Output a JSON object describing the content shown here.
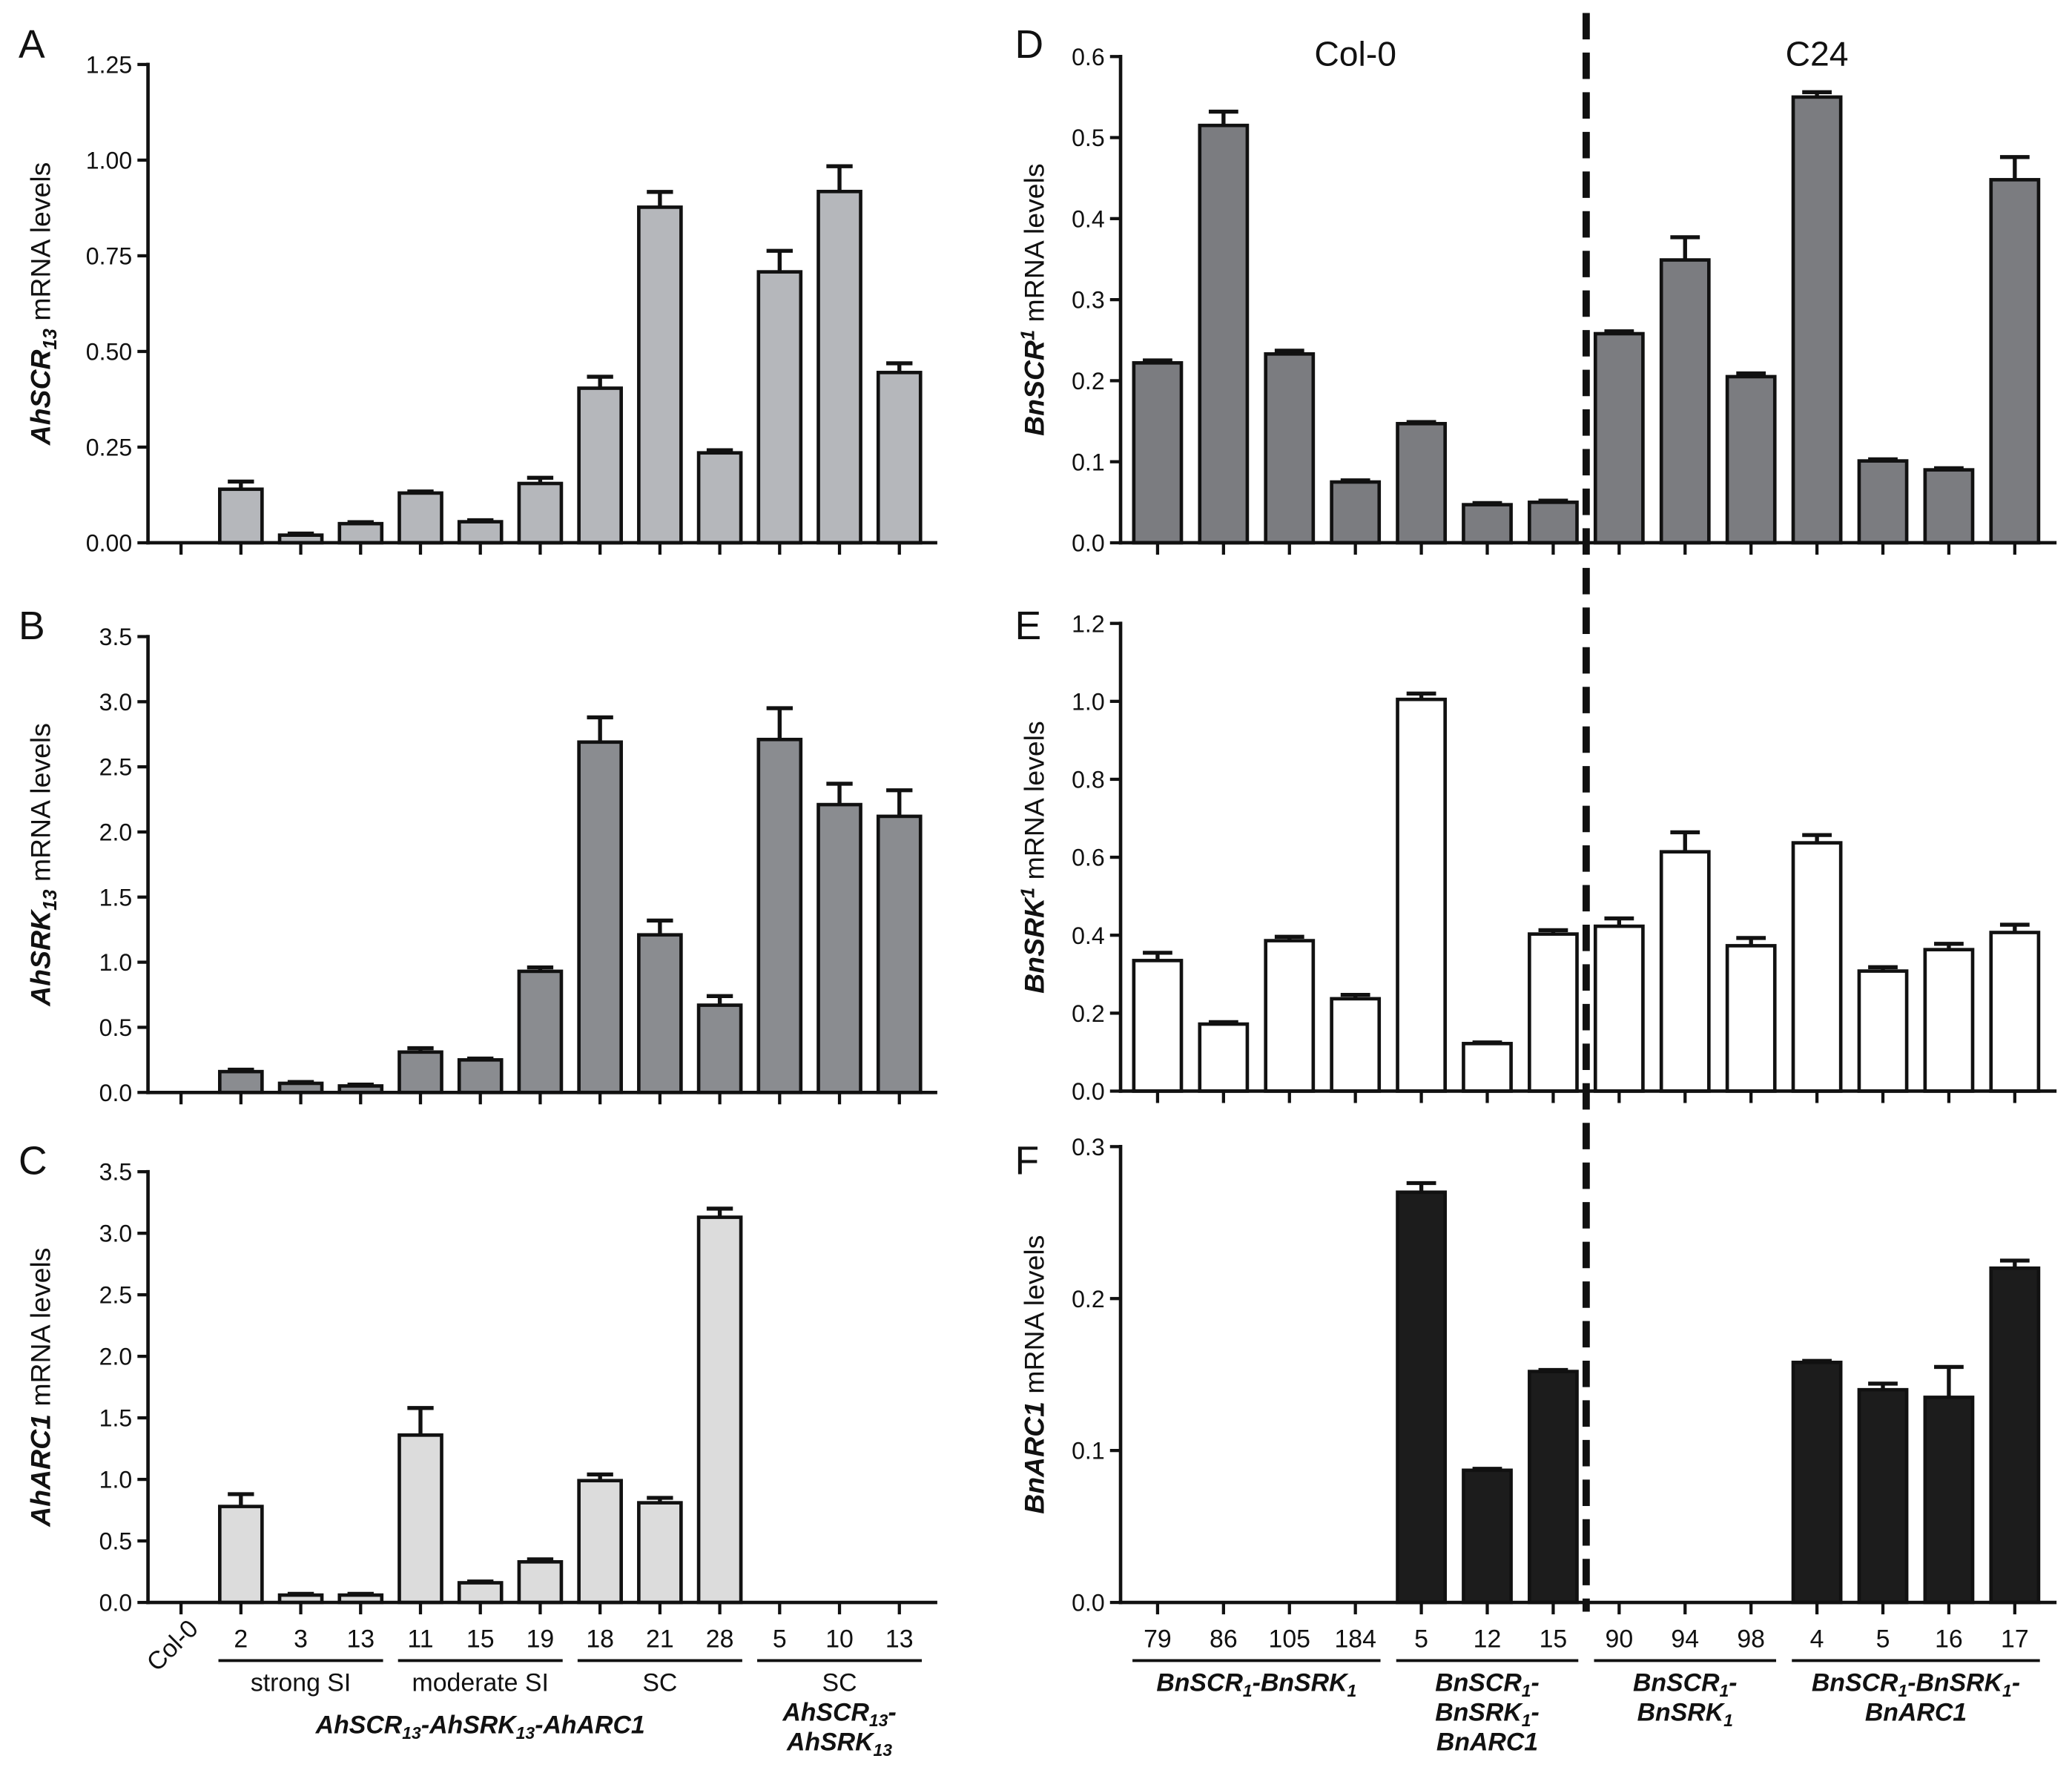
{
  "chart_data": {
    "type": "bar",
    "left": {
      "categories": [
        "Col-0",
        "2",
        "3",
        "13",
        "11",
        "15",
        "19",
        "18",
        "21",
        "28",
        "5",
        "10",
        "13"
      ],
      "groups": [
        {
          "from": 1,
          "to": 3,
          "underline": true,
          "lines": [
            {
              "italic": false,
              "segs": [
                {
                  "t": "strong SI"
                }
              ]
            }
          ]
        },
        {
          "from": 4,
          "to": 6,
          "underline": true,
          "lines": [
            {
              "italic": false,
              "segs": [
                {
                  "t": "moderate SI"
                }
              ]
            }
          ]
        },
        {
          "from": 7,
          "to": 9,
          "underline": true,
          "lines": [
            {
              "italic": false,
              "segs": [
                {
                  "t": "SC"
                }
              ]
            }
          ]
        },
        {
          "from": 10,
          "to": 12,
          "underline": true,
          "lines": [
            {
              "italic": false,
              "segs": [
                {
                  "t": "SC"
                }
              ]
            },
            {
              "italic": true,
              "segs": [
                {
                  "t": "AhSCR"
                },
                {
                  "t": "13",
                  "sub": true
                },
                {
                  "t": "-"
                }
              ]
            },
            {
              "italic": true,
              "segs": [
                {
                  "t": "AhSRK"
                },
                {
                  "t": "13",
                  "sub": true
                }
              ]
            }
          ]
        },
        {
          "from": 1,
          "to": 9,
          "underline": false,
          "lines": [
            {
              "italic": true,
              "segs": [
                {
                  "t": "AhSCR"
                },
                {
                  "t": "13",
                  "sub": true
                },
                {
                  "t": "-AhSRK"
                },
                {
                  "t": "13",
                  "sub": true
                },
                {
                  "t": "-AhARC1"
                }
              ]
            }
          ]
        }
      ],
      "panels": [
        {
          "letter": "A",
          "ylabel": [
            {
              "t": "AhSCR",
              "italic": true
            },
            {
              "t": "13",
              "italic": true,
              "sub": true
            },
            {
              "t": " mRNA levels"
            }
          ],
          "ylim": [
            0,
            1.25
          ],
          "yticks": [
            "0.00",
            "0.25",
            "0.50",
            "0.75",
            "1.00",
            "1.25"
          ],
          "values": [
            0,
            0.14,
            0.02,
            0.05,
            0.13,
            0.055,
            0.155,
            0.404,
            0.877,
            0.235,
            0.708,
            0.918,
            0.445
          ],
          "errors": [
            0,
            0.02,
            0.004,
            0.004,
            0.004,
            0.004,
            0.015,
            0.03,
            0.04,
            0.007,
            0.055,
            0.066,
            0.024
          ],
          "color": "#b5b7bb"
        },
        {
          "letter": "B",
          "ylabel": [
            {
              "t": "AhSRK",
              "italic": true
            },
            {
              "t": "13",
              "italic": true,
              "sub": true
            },
            {
              "t": " mRNA levels"
            }
          ],
          "ylim": [
            0,
            3.5
          ],
          "yticks": [
            "0.0",
            "0.5",
            "1.0",
            "1.5",
            "2.0",
            "2.5",
            "3.0",
            "3.5"
          ],
          "values": [
            0,
            0.16,
            0.07,
            0.05,
            0.31,
            0.25,
            0.93,
            2.69,
            1.21,
            0.67,
            2.71,
            2.21,
            2.12
          ],
          "errors": [
            0,
            0.015,
            0.01,
            0.01,
            0.03,
            0.01,
            0.03,
            0.19,
            0.11,
            0.07,
            0.24,
            0.16,
            0.2
          ],
          "color": "#8a8c90"
        },
        {
          "letter": "C",
          "ylabel": [
            {
              "t": "AhARC1",
              "italic": true
            },
            {
              "t": " mRNA levels"
            }
          ],
          "ylim": [
            0,
            3.5
          ],
          "yticks": [
            "0.0",
            "0.5",
            "1.0",
            "1.5",
            "2.0",
            "2.5",
            "3.0",
            "3.5"
          ],
          "values": [
            0,
            0.78,
            0.06,
            0.06,
            1.36,
            0.16,
            0.33,
            0.99,
            0.81,
            3.13,
            0,
            0,
            0
          ],
          "errors": [
            0,
            0.1,
            0.01,
            0.01,
            0.22,
            0.01,
            0.02,
            0.05,
            0.04,
            0.07,
            0,
            0,
            0
          ],
          "color": "#dcdcdc"
        }
      ]
    },
    "right": {
      "categories": [
        "79",
        "86",
        "105",
        "184",
        "5",
        "12",
        "15",
        "90",
        "94",
        "98",
        "4",
        "5",
        "16",
        "17"
      ],
      "background_labels": [
        "Col-0",
        "C24"
      ],
      "groups": [
        {
          "from": 0,
          "to": 3,
          "underline": true,
          "lines": [
            {
              "italic": true,
              "segs": [
                {
                  "t": "BnSCR"
                },
                {
                  "t": "1",
                  "sub": true
                },
                {
                  "t": "-BnSRK"
                },
                {
                  "t": "1",
                  "sub": true
                }
              ]
            }
          ]
        },
        {
          "from": 4,
          "to": 6,
          "underline": true,
          "lines": [
            {
              "italic": true,
              "segs": [
                {
                  "t": "BnSCR"
                },
                {
                  "t": "1",
                  "sub": true
                },
                {
                  "t": "-"
                }
              ]
            },
            {
              "italic": true,
              "segs": [
                {
                  "t": "BnSRK"
                },
                {
                  "t": "1",
                  "sub": true
                },
                {
                  "t": "-"
                }
              ]
            },
            {
              "italic": true,
              "segs": [
                {
                  "t": "BnARC1"
                }
              ]
            }
          ]
        },
        {
          "from": 7,
          "to": 9,
          "underline": true,
          "lines": [
            {
              "italic": true,
              "segs": [
                {
                  "t": "BnSCR"
                },
                {
                  "t": "1",
                  "sub": true
                },
                {
                  "t": "-"
                }
              ]
            },
            {
              "italic": true,
              "segs": [
                {
                  "t": "BnSRK"
                },
                {
                  "t": "1",
                  "sub": true
                }
              ]
            }
          ]
        },
        {
          "from": 10,
          "to": 13,
          "underline": true,
          "lines": [
            {
              "italic": true,
              "segs": [
                {
                  "t": "BnSCR"
                },
                {
                  "t": "1",
                  "sub": true
                },
                {
                  "t": "-BnSRK"
                },
                {
                  "t": "1",
                  "sub": true
                },
                {
                  "t": "-"
                }
              ]
            },
            {
              "italic": true,
              "segs": [
                {
                  "t": "BnARC1"
                }
              ]
            }
          ]
        }
      ],
      "panels": [
        {
          "letter": "D",
          "ylabel": [
            {
              "t": "BnSCR",
              "italic": true
            },
            {
              "t": "1",
              "italic": true,
              "sup": true
            },
            {
              "t": " mRNA levels"
            }
          ],
          "ylim": [
            0,
            0.6
          ],
          "yticks": [
            "0.0",
            "0.1",
            "0.2",
            "0.3",
            "0.4",
            "0.5",
            "0.6"
          ],
          "values": [
            0.222,
            0.515,
            0.233,
            0.075,
            0.147,
            0.047,
            0.05,
            0.258,
            0.349,
            0.205,
            0.55,
            0.101,
            0.09,
            0.448
          ],
          "errors": [
            0.003,
            0.017,
            0.004,
            0.002,
            0.002,
            0.002,
            0.002,
            0.003,
            0.028,
            0.004,
            0.006,
            0.002,
            0.002,
            0.028
          ],
          "color": "#7b7c80"
        },
        {
          "letter": "E",
          "ylabel": [
            {
              "t": "BnSRK",
              "italic": true
            },
            {
              "t": "1",
              "italic": true,
              "sup": true
            },
            {
              "t": " mRNA levels"
            }
          ],
          "ylim": [
            0,
            1.2
          ],
          "yticks": [
            "0.0",
            "0.2",
            "0.4",
            "0.6",
            "0.8",
            "1.0",
            "1.2"
          ],
          "values": [
            0.335,
            0.172,
            0.386,
            0.237,
            1.005,
            0.122,
            0.403,
            0.423,
            0.614,
            0.373,
            0.637,
            0.308,
            0.363,
            0.407
          ],
          "errors": [
            0.02,
            0.005,
            0.01,
            0.01,
            0.015,
            0.003,
            0.01,
            0.02,
            0.05,
            0.02,
            0.02,
            0.01,
            0.015,
            0.02
          ],
          "color": "#ffffff"
        },
        {
          "letter": "F",
          "ylabel": [
            {
              "t": "BnARC1",
              "italic": true
            },
            {
              "t": " mRNA levels"
            }
          ],
          "ylim": [
            0,
            0.3
          ],
          "yticks": [
            "0.0",
            "0.1",
            "0.2",
            "0.3"
          ],
          "values": [
            0,
            0,
            0,
            0,
            0.27,
            0.087,
            0.152,
            0,
            0,
            0,
            0.158,
            0.14,
            0.135,
            0.22
          ],
          "errors": [
            0,
            0,
            0,
            0,
            0.006,
            0.001,
            0.001,
            0,
            0,
            0,
            0.001,
            0.004,
            0.02,
            0.005
          ],
          "color": "#1c1c1c"
        }
      ]
    }
  }
}
